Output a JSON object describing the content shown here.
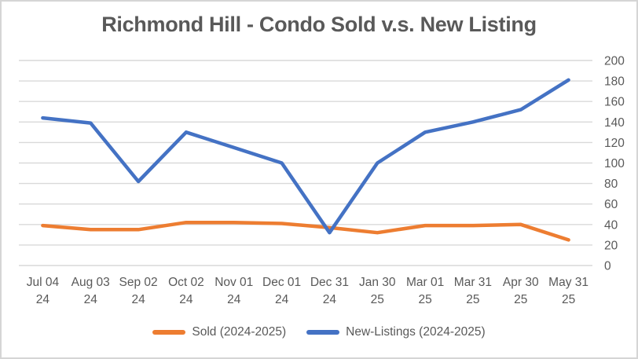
{
  "window": {
    "background": "#ffffff",
    "border_color": "#d5d5d5"
  },
  "chart_data": {
    "type": "line",
    "title": "Richmond Hill - Condo Sold v.s. New Listing",
    "categories": [
      [
        "Jul 04",
        "24"
      ],
      [
        "Aug 03",
        "24"
      ],
      [
        "Sep 02",
        "24"
      ],
      [
        "Oct 02",
        "24"
      ],
      [
        "Nov 01",
        "24"
      ],
      [
        "Dec 01",
        "24"
      ],
      [
        "Dec 31",
        "24"
      ],
      [
        "Jan 30",
        "25"
      ],
      [
        "Mar 01",
        "25"
      ],
      [
        "Mar 31",
        "25"
      ],
      [
        "Apr 30",
        "25"
      ],
      [
        "May 31",
        "25"
      ]
    ],
    "series": [
      {
        "name": "Sold (2024-2025)",
        "color": "#ED7D31",
        "values": [
          39,
          35,
          35,
          42,
          42,
          41,
          37,
          32,
          39,
          39,
          40,
          25
        ]
      },
      {
        "name": "New-Listings (2024-2025)",
        "color": "#4472C4",
        "values": [
          144,
          139,
          82,
          130,
          115,
          100,
          32,
          100,
          130,
          140,
          152,
          181
        ]
      }
    ],
    "xlabel": "",
    "ylabel": "",
    "ylim": [
      0,
      200
    ],
    "yticks": [
      0,
      20,
      40,
      60,
      80,
      100,
      120,
      140,
      160,
      180,
      200
    ],
    "ytick_side": "right",
    "grid": "horizontal",
    "grid_color": "#d9d9d9",
    "text_color": "#595959",
    "legend_position": "bottom"
  }
}
